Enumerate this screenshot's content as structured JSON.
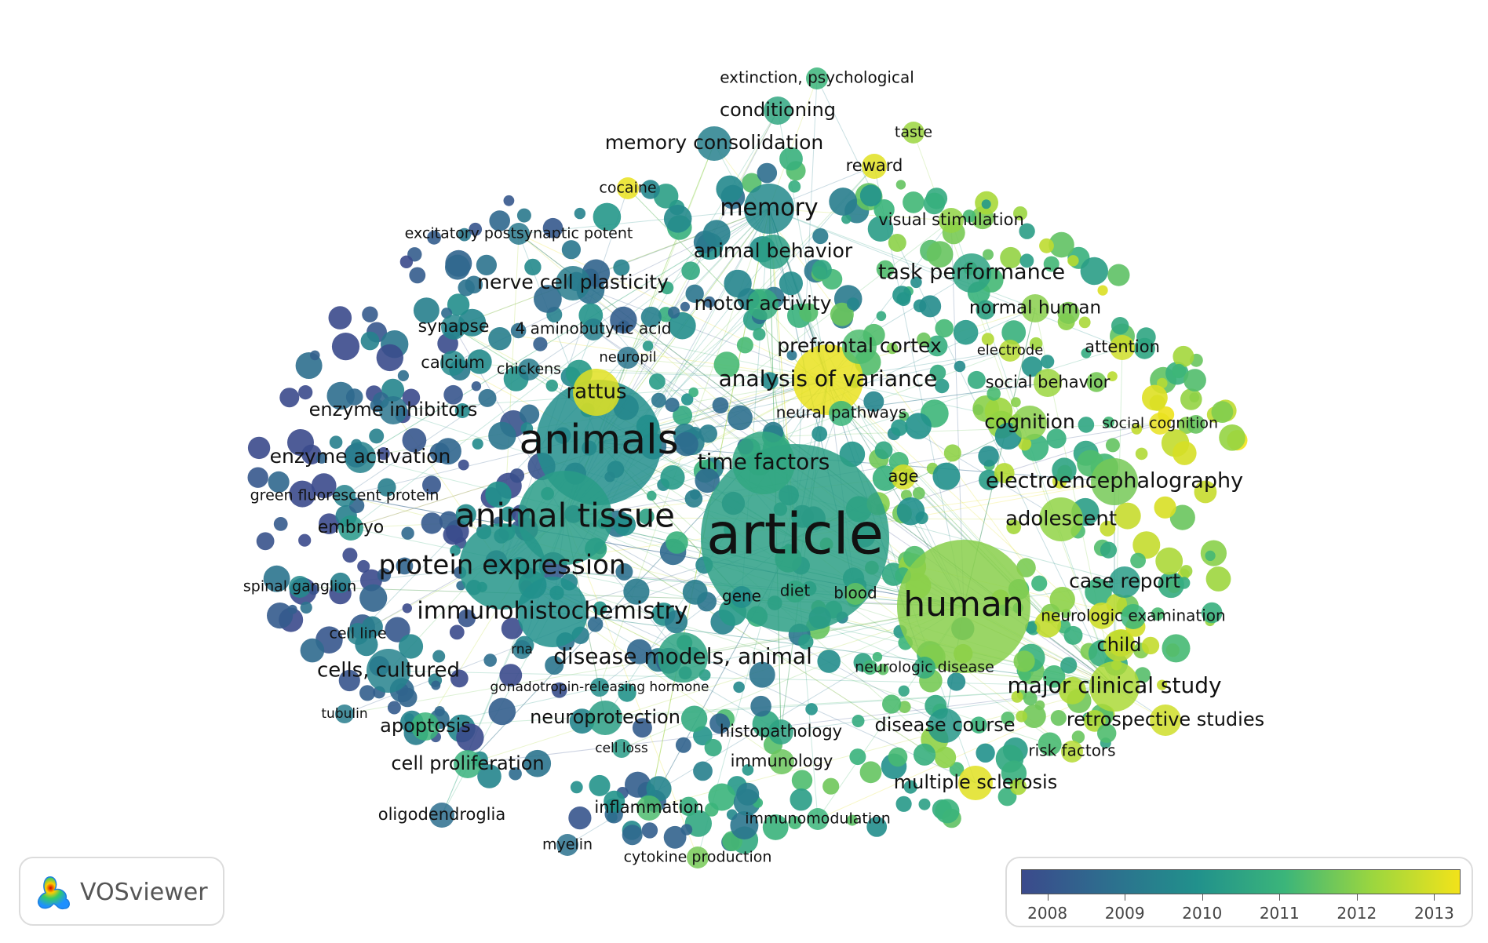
{
  "app": {
    "name": "VOSviewer"
  },
  "legend": {
    "years": [
      "2008",
      "2009",
      "2010",
      "2011",
      "2012",
      "2013"
    ],
    "colors": [
      "#3b4a8c",
      "#2d6f8e",
      "#21918c",
      "#3bb57a",
      "#9bd63f",
      "#f2e31a"
    ]
  },
  "labels": [
    {
      "text": "article",
      "year": 2010.4
    },
    {
      "text": "animals",
      "year": 2009.9
    },
    {
      "text": "human",
      "year": 2011.8
    },
    {
      "text": "animal tissue",
      "year": 2010.3
    },
    {
      "text": "protein expression",
      "year": 2010.1
    },
    {
      "text": "immunohistochemistry",
      "year": 2010.0
    },
    {
      "text": "disease models, animal",
      "year": 2010.5
    },
    {
      "text": "memory",
      "year": 2009.8
    },
    {
      "text": "time factors",
      "year": 2010.6
    },
    {
      "text": "analysis of variance",
      "year": 2012.9
    },
    {
      "text": "rattus",
      "year": 2012.8
    },
    {
      "text": "electroencephalography",
      "year": 2011.6
    },
    {
      "text": "adolescent",
      "year": 2011.9
    },
    {
      "text": "major clinical study",
      "year": 2012.2
    },
    {
      "text": "cells, cultured",
      "year": 2009.6
    },
    {
      "text": "memory consolidation",
      "year": 2009.5
    },
    {
      "text": "animal behavior",
      "year": 2010.4
    },
    {
      "text": "task performance",
      "year": 2010.5
    },
    {
      "text": "motor activity",
      "year": 2010.8
    },
    {
      "text": "nerve cell plasticity",
      "year": 2009.4
    },
    {
      "text": "prefrontal cortex",
      "year": 2011.2
    },
    {
      "text": "enzyme activation",
      "year": 2009.6
    },
    {
      "text": "enzyme inhibitors",
      "year": 2009.2
    },
    {
      "text": "cognition",
      "year": 2011.8
    },
    {
      "text": "case report",
      "year": 2010.3
    },
    {
      "text": "child",
      "year": 2012.4
    },
    {
      "text": "retrospective studies",
      "year": 2012.6
    },
    {
      "text": "disease course",
      "year": 2010.2
    },
    {
      "text": "multiple sclerosis",
      "year": 2012.8
    },
    {
      "text": "neuroprotection",
      "year": 2010.4
    },
    {
      "text": "cell proliferation",
      "year": 2010.9
    },
    {
      "text": "apoptosis",
      "year": 2011.0
    },
    {
      "text": "conditioning",
      "year": 2010.6
    },
    {
      "text": "normal human",
      "year": 2011.8
    },
    {
      "text": "social behavior",
      "year": 2012.0
    },
    {
      "text": "histopathology",
      "year": 2010.5
    },
    {
      "text": "immunology",
      "year": 2011.5
    },
    {
      "text": "inflammation",
      "year": 2011.2
    },
    {
      "text": "embryo",
      "year": 2010.2
    },
    {
      "text": "neurologic examination",
      "year": 2011.0
    },
    {
      "text": "risk factors",
      "year": 2012.3
    },
    {
      "text": "calcium",
      "year": 2009.8
    },
    {
      "text": "synapse",
      "year": 2009.7
    },
    {
      "text": "4 aminobutyric acid",
      "year": 2009.5
    },
    {
      "text": "neural pathways",
      "year": 2011.0
    },
    {
      "text": "oligodendroglia",
      "year": 2009.0
    },
    {
      "text": "attention",
      "year": 2012.6
    },
    {
      "text": "age",
      "year": 2012.7
    },
    {
      "text": "gene",
      "year": 2009.9
    },
    {
      "text": "diet",
      "year": 2010.6
    },
    {
      "text": "blood",
      "year": 2011.4
    },
    {
      "text": "cell line",
      "year": 2009.6
    },
    {
      "text": "reward",
      "year": 2012.8
    },
    {
      "text": "visual stimulation",
      "year": 2011.9
    },
    {
      "text": "extinction, psychological",
      "year": 2011.0
    },
    {
      "text": "taste",
      "year": 2012.0
    },
    {
      "text": "cocaine",
      "year": 2012.9
    },
    {
      "text": "excitatory postsynaptic potent",
      "year": 2009.3
    },
    {
      "text": "chickens",
      "year": 2009.4
    },
    {
      "text": "neuropil",
      "year": 2009.2
    },
    {
      "text": "green fluorescent protein",
      "year": 2009.6
    },
    {
      "text": "spinal ganglion",
      "year": 2009.8
    },
    {
      "text": "electrode",
      "year": 2012.3
    },
    {
      "text": "social cognition",
      "year": 2012.9
    },
    {
      "text": "neurologic disease",
      "year": 2010.7
    },
    {
      "text": "rna",
      "year": 2009.3
    },
    {
      "text": "gonadotropin-releasing hormone",
      "year": 2009.9
    },
    {
      "text": "tubulin",
      "year": 2009.4
    },
    {
      "text": "cell loss",
      "year": 2010.3
    },
    {
      "text": "immunomodulation",
      "year": 2011.0
    },
    {
      "text": "myelin",
      "year": 2009.1
    },
    {
      "text": "cytokine production",
      "year": 2011.6
    }
  ]
}
